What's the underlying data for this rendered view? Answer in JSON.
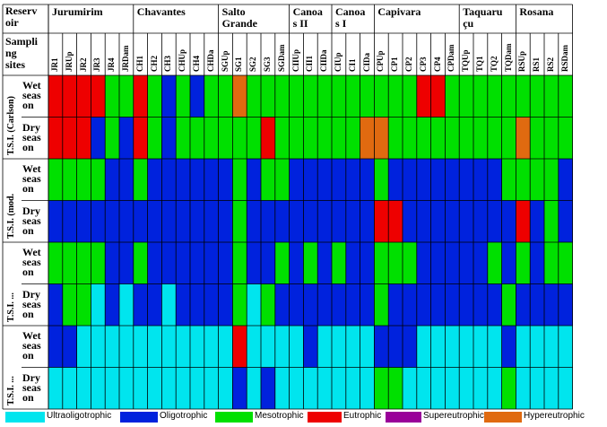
{
  "header": {
    "reservoir_label": "Reserv\noir",
    "sampling_label": "Sampli\nng\nsites"
  },
  "reservoirs": [
    {
      "name": "Jurumirim",
      "sites": [
        "JR1",
        "JRUp",
        "JR2",
        "JR3",
        "JR4",
        "JRDam"
      ]
    },
    {
      "name": "Chavantes",
      "sites": [
        "CH1",
        "CH2",
        "CH3",
        "CHUp",
        "CH4",
        "CHDa"
      ]
    },
    {
      "name": "Salto\nGrande",
      "sites": [
        "SGUp",
        "SG1",
        "SG2",
        "SG3",
        "SGDam"
      ]
    },
    {
      "name": "Canoa\ns II",
      "sites": [
        "CIIUp",
        "CII1",
        "CIIDa"
      ]
    },
    {
      "name": "Canoa\ns I",
      "sites": [
        "CIUp",
        "CI1",
        "CIDa"
      ]
    },
    {
      "name": "Capivara",
      "sites": [
        "CPUp",
        "CP1",
        "CP2",
        "CP3",
        "CP4",
        "CPDam"
      ]
    },
    {
      "name": "Taquaru\nçu",
      "sites": [
        "TQUp",
        "TQ1",
        "TQ2",
        "TQDam"
      ]
    },
    {
      "name": "Rosana",
      "sites": [
        "RSUp",
        "RS1",
        "RS2",
        "RSDam"
      ]
    }
  ],
  "indices": [
    {
      "label": "T.S.I. (Carlson)",
      "seasons": [
        "Wet\nseas\non",
        "Dry\nseas\non"
      ]
    },
    {
      "label": "T.S.I. (mod.",
      "seasons": [
        "Wet\nseas\non",
        "Dry\nseas\non"
      ]
    },
    {
      "label": "T.S.I. ...",
      "seasons": [
        "Wet\nseas\non",
        "Dry\nseas\non"
      ]
    },
    {
      "label": "T.S.I. ...",
      "seasons": [
        "Wet\nseas\non",
        "Dry\nseas\non"
      ]
    }
  ],
  "classes": {
    "U": {
      "label": "Ultraoligotrophic",
      "color": "#00e5ee"
    },
    "O": {
      "label": "Oligotrophic",
      "color": "#0022dd"
    },
    "M": {
      "label": "Mesotrophic",
      "color": "#00e000"
    },
    "E": {
      "label": "Eutrophic",
      "color": "#ee0000"
    },
    "S": {
      "label": "Supereutrophic",
      "color": "#990099"
    },
    "H": {
      "label": "Hypereutrophic",
      "color": "#e06a10"
    }
  },
  "legend_order": [
    "U",
    "O",
    "M",
    "E",
    "S",
    "H"
  ],
  "grid_rows": [
    "EEEEMMEMOMOMMHMMMMMMMMMMMMEEMMMMMMMMM",
    "EEEOMOEMOMMMMMMEMMMMMMHHMMMMMMMMMHMMM",
    "MMMMOOMOOOOOOMOMMOOOOOOMOOOOOOOOMMMMO",
    "OOOOOOOOOOOOOMOOOOOOOOOEEOOOOOOOOEOMO",
    "MMMMOOMOOOOOOMOOMOMOMOOMMMOOOOOMOMOMM",
    "OMMUOUOOUOOOOMUMOOOOOOOMOOOOOOOOMOOOO",
    "OOUUUUUUUUUUUEUUUUOUUUUOOOUUUUUUOUUUU",
    "UUUUUUUUUUUUUOUOUUUUUUUMMUUUUUUUMUUUU"
  ]
}
